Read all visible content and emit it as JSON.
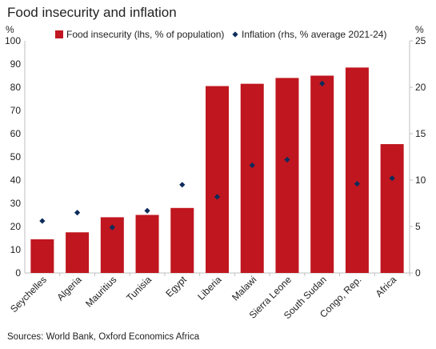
{
  "title": "Food insecurity and inflation",
  "source": "Sources: World Bank, Oxford Economics Africa",
  "colors": {
    "bar": "#c0161f",
    "marker": "#0d2c5a",
    "axis": "#bfbfbf"
  },
  "chart_data": {
    "type": "bar",
    "categories": [
      "Seychelles",
      "Algeria",
      "Mauritius",
      "Tunisia",
      "Egypt",
      "Liberia",
      "Malawi",
      "Sierra Leone",
      "South Sudan",
      "Congo, Rep.",
      "Africa"
    ],
    "series": [
      {
        "name": "Food insecurity (lhs, % of population)",
        "type": "bar",
        "axis": "left",
        "values": [
          14.5,
          17.5,
          24,
          25,
          28,
          80.5,
          81.5,
          84,
          85,
          88.5,
          55.5
        ]
      },
      {
        "name": "Inflation (rhs, % average 2021-24)",
        "type": "scatter",
        "marker": "diamond",
        "axis": "right",
        "values": [
          5.6,
          6.5,
          4.9,
          6.7,
          9.5,
          8.2,
          11.6,
          12.2,
          20.4,
          9.6,
          10.2
        ]
      }
    ],
    "left_axis": {
      "label": "%",
      "range": [
        0,
        100
      ],
      "ticks": [
        "0",
        "10",
        "20",
        "30",
        "40",
        "50",
        "60",
        "70",
        "80",
        "90",
        "100"
      ]
    },
    "right_axis": {
      "label": "%",
      "range": [
        0,
        25
      ],
      "ticks": [
        "0",
        "5",
        "10",
        "15",
        "20",
        "25"
      ]
    },
    "grid": false,
    "legend": "top"
  }
}
